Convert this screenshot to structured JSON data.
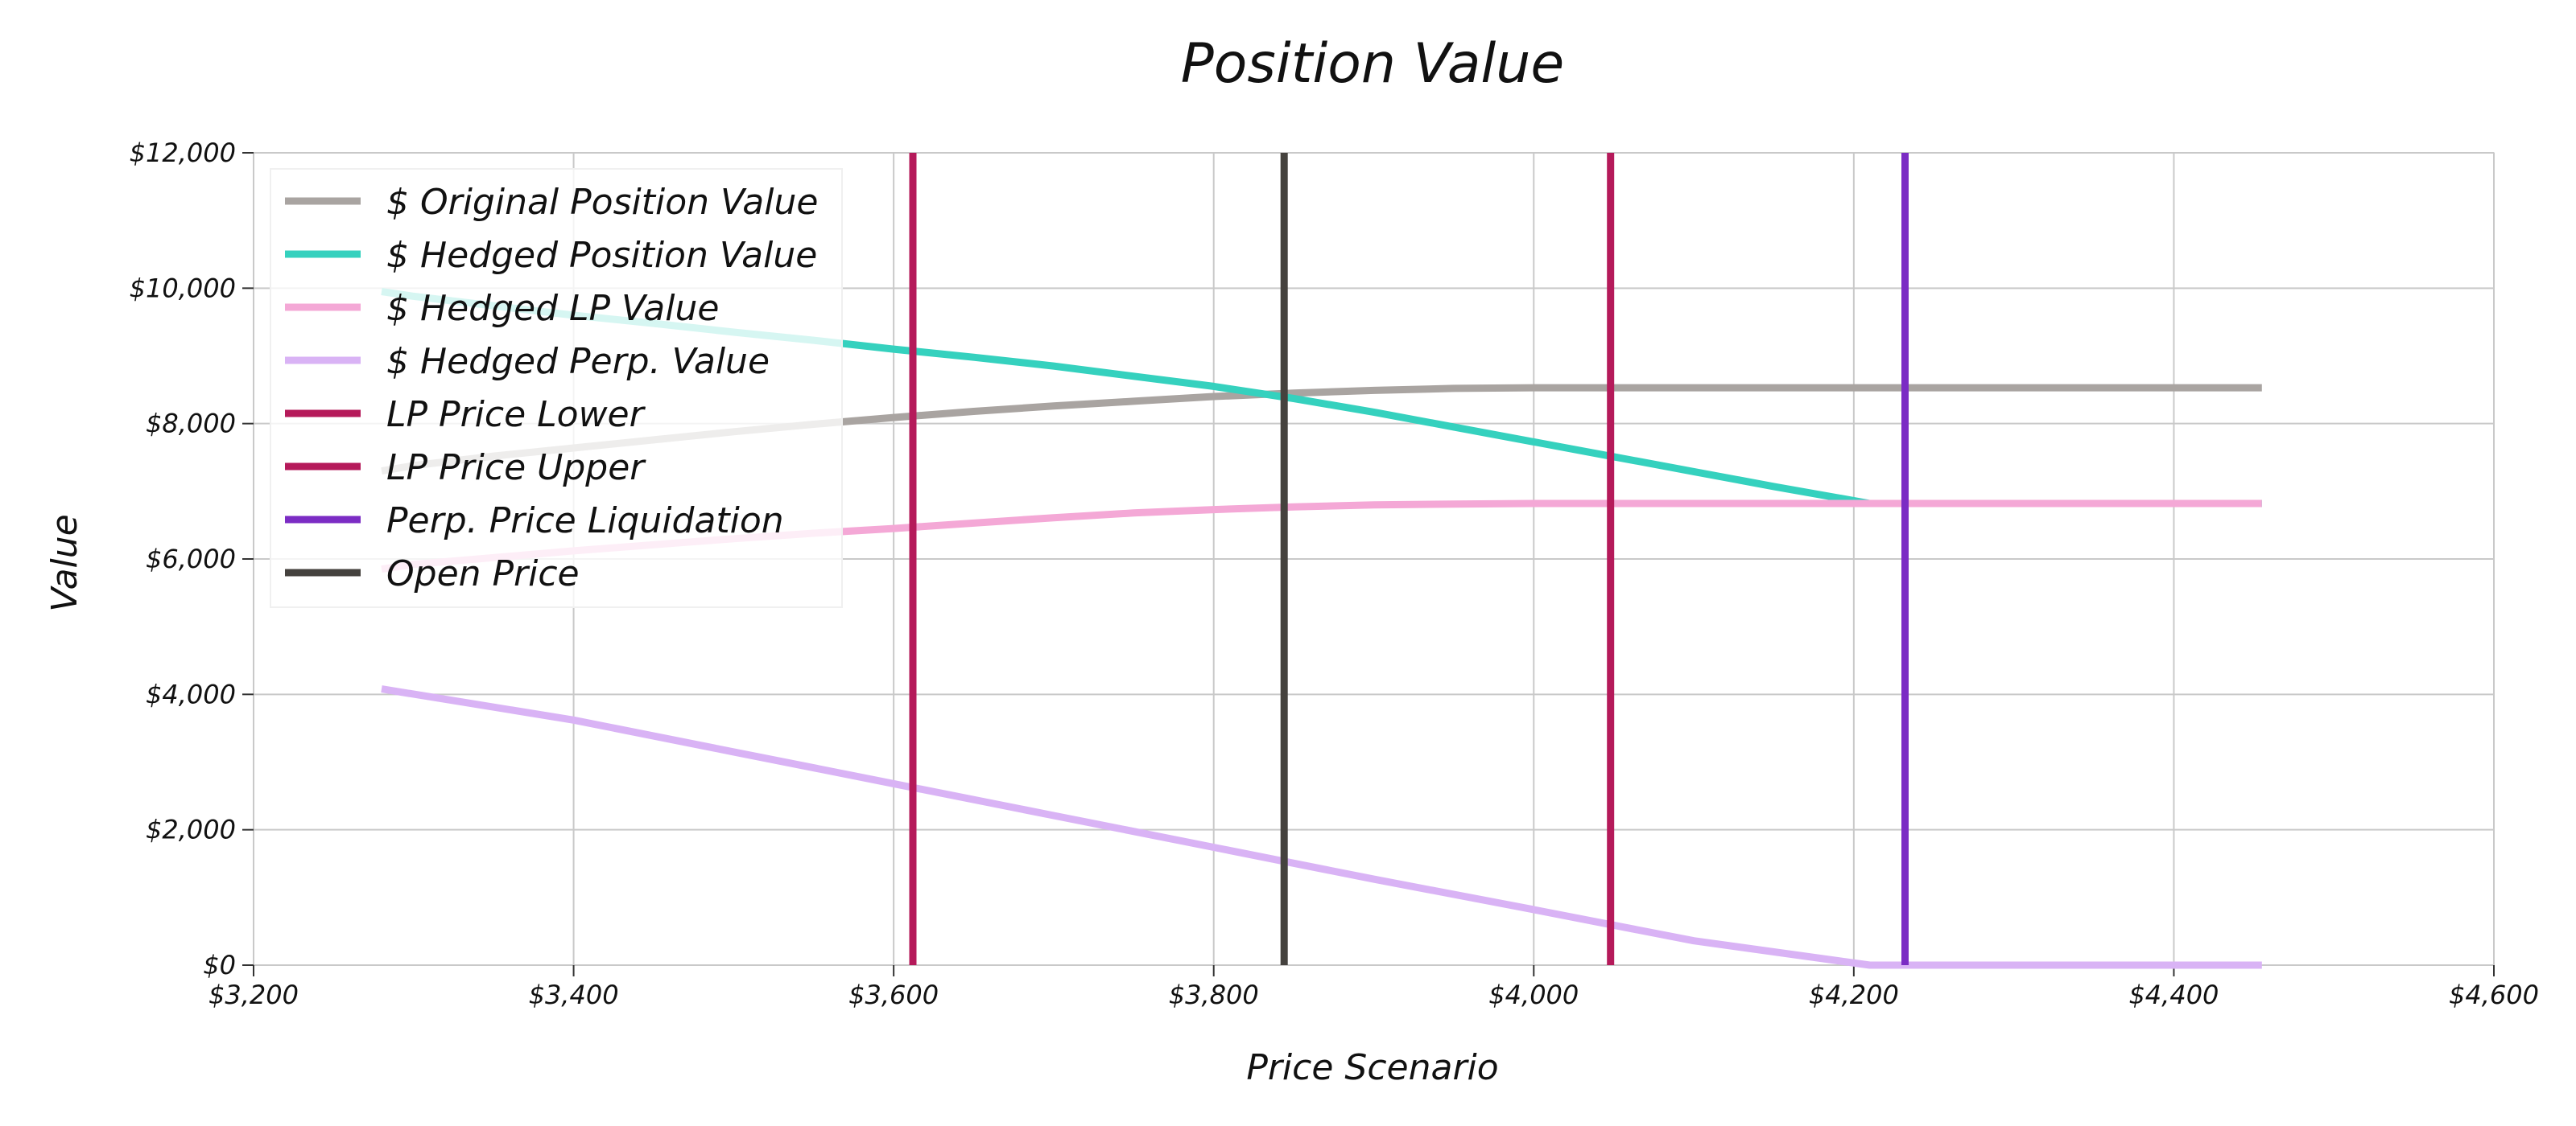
{
  "chart_data": {
    "type": "line",
    "title": "Position Value",
    "xlabel": "Price Scenario",
    "ylabel": "Value",
    "xlim": [
      3200,
      4600
    ],
    "ylim": [
      0,
      12000
    ],
    "xticks": [
      3200,
      3400,
      3600,
      3800,
      4000,
      4200,
      4400,
      4600
    ],
    "xtick_labels": [
      "$3,200",
      "$3,400",
      "$3,600",
      "$3,800",
      "$4,000",
      "$4,200",
      "$4,400",
      "$4,600"
    ],
    "yticks": [
      0,
      2000,
      4000,
      6000,
      8000,
      10000,
      12000
    ],
    "ytick_labels": [
      "$0",
      "$2,000",
      "$4,000",
      "$6,000",
      "$8,000",
      "$10,000",
      "$12,000"
    ],
    "grid": true,
    "legend_position": "top-left",
    "series": [
      {
        "name": "$ Original Position Value",
        "color": "#a9a4a1",
        "x": [
          3280,
          3300,
          3350,
          3400,
          3450,
          3500,
          3550,
          3600,
          3650,
          3700,
          3750,
          3800,
          3850,
          3900,
          3950,
          4000,
          4050,
          4100,
          4150,
          4200,
          4250,
          4300,
          4350,
          4400,
          4455
        ],
        "y": [
          7300,
          7380,
          7520,
          7640,
          7760,
          7880,
          7990,
          8090,
          8180,
          8260,
          8330,
          8400,
          8450,
          8490,
          8520,
          8530,
          8530,
          8530,
          8530,
          8530,
          8530,
          8530,
          8530,
          8530,
          8530
        ]
      },
      {
        "name": "$ Hedged Position Value",
        "color": "#35d1be",
        "x": [
          3280,
          3300,
          3350,
          3400,
          3450,
          3500,
          3550,
          3600,
          3650,
          3700,
          3750,
          3800,
          3850,
          3900,
          3950,
          4000,
          4050,
          4100,
          4150,
          4210,
          4250,
          4300,
          4350,
          4400,
          4455
        ],
        "y": [
          9950,
          9880,
          9740,
          9600,
          9480,
          9350,
          9230,
          9100,
          8980,
          8850,
          8700,
          8550,
          8370,
          8170,
          7950,
          7730,
          7510,
          7290,
          7070,
          6820,
          6820,
          6820,
          6820,
          6820,
          6820
        ]
      },
      {
        "name": "$ Hedged LP Value",
        "color": "#f4a8d6",
        "x": [
          3280,
          3300,
          3350,
          3400,
          3450,
          3500,
          3550,
          3600,
          3650,
          3700,
          3750,
          3800,
          3850,
          3900,
          3950,
          4000,
          4050,
          4100,
          4150,
          4200,
          4250,
          4300,
          4350,
          4400,
          4455
        ],
        "y": [
          5850,
          5920,
          6020,
          6120,
          6210,
          6300,
          6380,
          6450,
          6530,
          6610,
          6680,
          6730,
          6770,
          6800,
          6810,
          6820,
          6820,
          6820,
          6820,
          6820,
          6820,
          6820,
          6820,
          6820,
          6820
        ]
      },
      {
        "name": "$ Hedged Perp. Value",
        "color": "#d9b3f5",
        "x": [
          3280,
          3400,
          3500,
          3600,
          3700,
          3800,
          3900,
          4000,
          4100,
          4210,
          4300,
          4455
        ],
        "y": [
          4080,
          3620,
          3150,
          2680,
          2210,
          1740,
          1270,
          820,
          360,
          0,
          0,
          0
        ]
      },
      {
        "name": "LP Price Lower",
        "color": "#b51a5a",
        "x": [
          3612,
          3612
        ],
        "y": [
          0,
          12000
        ]
      },
      {
        "name": "LP Price Upper",
        "color": "#b51a5a",
        "x": [
          4048,
          4048
        ],
        "y": [
          0,
          12000
        ]
      },
      {
        "name": "Perp. Price Liquidation",
        "color": "#7b2cc4",
        "x": [
          4232,
          4232
        ],
        "y": [
          0,
          12000
        ]
      },
      {
        "name": "Open Price",
        "color": "#45423e",
        "x": [
          3844,
          3844
        ],
        "y": [
          0,
          12000
        ]
      }
    ]
  }
}
